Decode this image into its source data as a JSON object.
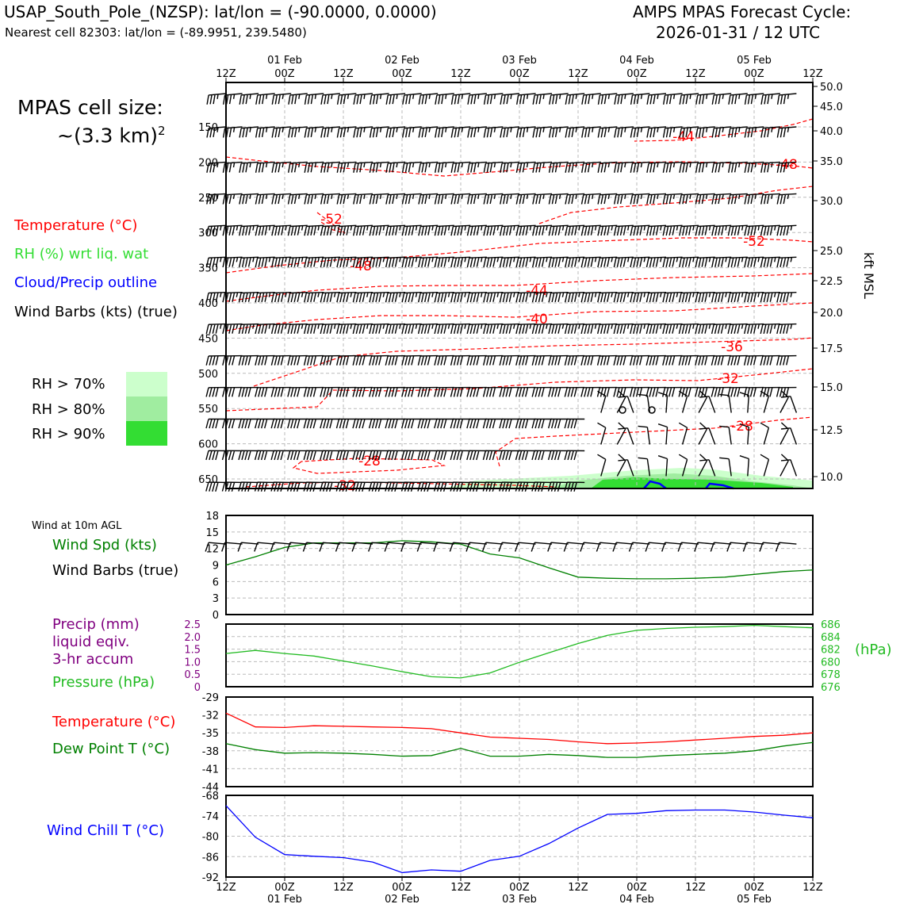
{
  "header": {
    "station_line": "USAP_South_Pole_(NZSP): lat/lon = (-90.0000, 0.0000)",
    "cell_line": "Nearest cell 82303: lat/lon = (-89.9951, 239.5480)",
    "cycle_line1": "AMPS MPAS Forecast Cycle:",
    "cycle_line2": "2026-01-31 / 12 UTC"
  },
  "cell_size": {
    "line1": "MPAS cell size:",
    "line2": "~(3.3 km)",
    "exponent": "2"
  },
  "legend": {
    "temperature": "Temperature (°C)",
    "rh": "RH (%) wrt liq. wat",
    "cloud": "Cloud/Precip outline",
    "barbs": "Wind Barbs (kts) (true)",
    "rh70": "RH > 70%",
    "rh80": "RH > 80%",
    "rh90": "RH > 90%"
  },
  "colors": {
    "temp": "#ff0000",
    "rh": "#33dd33",
    "cloud": "#0000ff",
    "pressure": "#22bb22",
    "dewpoint": "#008000",
    "precip": "#800080",
    "windchill": "#0000ff",
    "rh70": "#ccffcc",
    "rh80": "#a0eda0",
    "rh90": "#33dd33"
  },
  "time_axis": {
    "ticks": [
      "12Z",
      "00Z",
      "12Z",
      "00Z",
      "12Z",
      "00Z",
      "12Z",
      "00Z",
      "12Z",
      "00Z",
      "12Z"
    ],
    "dates": [
      "01 Feb",
      "02 Feb",
      "03 Feb",
      "04 Feb",
      "05 Feb"
    ],
    "hours": [
      0,
      12,
      24,
      36,
      48,
      60,
      72,
      84,
      96,
      108,
      120
    ]
  },
  "chart_data": [
    {
      "type": "line",
      "panel": "upper-air cross-section",
      "ylabel_right": "kft MSL",
      "pressure_ticks": [
        "150",
        "200",
        "250",
        "300",
        "350",
        "400",
        "450",
        "500",
        "550",
        "600",
        "650"
      ],
      "pressure_values": [
        150,
        200,
        250,
        300,
        350,
        400,
        450,
        500,
        550,
        600,
        650
      ],
      "kft_ticks": [
        "50.0",
        "45.0",
        "40.0",
        "35.0",
        "30.0",
        "25.0",
        "22.5",
        "20.0",
        "17.5",
        "15.0",
        "12.5",
        "10.0"
      ],
      "temperature_contour_labels": [
        "-44",
        "-48",
        "-52",
        "-52",
        "-48",
        "-44",
        "-40",
        "-36",
        "-32",
        "-28",
        "-28",
        "-32"
      ],
      "barb_levels_hpa": [
        110,
        150,
        200,
        245,
        290,
        335,
        385,
        430,
        475,
        520,
        565,
        610,
        655
      ],
      "grid": true
    },
    {
      "type": "line",
      "panel": "wind at 10m AGL",
      "title": "Wind at 10m AGL",
      "label_speed": "Wind Spd (kts)",
      "label_barbs": "Wind Barbs (true)",
      "yticks": [
        "0",
        "3",
        "6",
        "9",
        "12",
        "15",
        "18"
      ],
      "ylim": [
        0,
        18
      ],
      "series": [
        {
          "name": "Wind Spd (kts)",
          "x": [
            0,
            6,
            12,
            18,
            24,
            30,
            36,
            42,
            48,
            54,
            60,
            66,
            72,
            78,
            84,
            90,
            96,
            102,
            108,
            114,
            120
          ],
          "values": [
            9,
            10.5,
            12.2,
            13,
            13,
            13,
            13.4,
            13.2,
            12.8,
            11,
            10.3,
            8.5,
            6.8,
            6.6,
            6.5,
            6.5,
            6.6,
            6.8,
            7.3,
            7.8,
            8.1
          ]
        }
      ],
      "grid": true
    },
    {
      "type": "line",
      "panel": "precip and pressure",
      "label_precip": "Precip (mm)",
      "label_precip2": "liquid eqiv.",
      "label_precip3": "3-hr accum",
      "label_pressure": "Pressure (hPa)",
      "ylabel_right": "(hPa)",
      "left_ticks": [
        "0",
        "0.5",
        "1.0",
        "1.5",
        "2.0",
        "2.5"
      ],
      "right_ticks": [
        "676",
        "678",
        "680",
        "682",
        "684",
        "686"
      ],
      "ylim_right": [
        676,
        686
      ],
      "series": [
        {
          "name": "Pressure (hPa)",
          "x": [
            0,
            6,
            12,
            18,
            24,
            30,
            36,
            42,
            48,
            54,
            60,
            66,
            72,
            78,
            84,
            90,
            96,
            102,
            108,
            114,
            120
          ],
          "values": [
            681.3,
            681.8,
            681.3,
            680.9,
            680.1,
            679.3,
            678.4,
            677.6,
            677.4,
            678.2,
            679.9,
            681.4,
            682.9,
            684.2,
            685,
            685.3,
            685.5,
            685.6,
            685.8,
            685.6,
            685.4
          ]
        }
      ],
      "grid": true
    },
    {
      "type": "line",
      "panel": "temperature and dew point",
      "label_temp": "Temperature (°C)",
      "label_dew": "Dew Point T (°C)",
      "yticks": [
        "-44",
        "-41",
        "-38",
        "-35",
        "-32",
        "-29"
      ],
      "ylim": [
        -44,
        -29
      ],
      "series": [
        {
          "name": "Temperature (°C)",
          "x": [
            0,
            6,
            12,
            18,
            24,
            30,
            36,
            42,
            48,
            54,
            60,
            66,
            72,
            78,
            84,
            90,
            96,
            102,
            108,
            114,
            120
          ],
          "values": [
            -31.7,
            -34,
            -34.1,
            -33.8,
            -33.9,
            -34,
            -34.1,
            -34.3,
            -35,
            -35.7,
            -35.9,
            -36.1,
            -36.5,
            -36.8,
            -36.7,
            -36.5,
            -36.2,
            -35.9,
            -35.6,
            -35.4,
            -35
          ]
        },
        {
          "name": "Dew Point T (°C)",
          "x": [
            0,
            6,
            12,
            18,
            24,
            30,
            36,
            42,
            48,
            54,
            60,
            66,
            72,
            78,
            84,
            90,
            96,
            102,
            108,
            114,
            120
          ],
          "values": [
            -36.8,
            -37.8,
            -38.4,
            -38.3,
            -38.4,
            -38.6,
            -38.9,
            -38.8,
            -37.6,
            -38.9,
            -38.9,
            -38.6,
            -38.8,
            -39.1,
            -39.1,
            -38.8,
            -38.6,
            -38.4,
            -38,
            -37.2,
            -36.6
          ]
        }
      ],
      "grid": true
    },
    {
      "type": "line",
      "panel": "wind chill",
      "label": "Wind Chill T (°C)",
      "yticks": [
        "-92",
        "-86",
        "-80",
        "-74",
        "-68"
      ],
      "ylim": [
        -92,
        -68
      ],
      "series": [
        {
          "name": "Wind Chill T (°C)",
          "x": [
            0,
            6,
            12,
            18,
            24,
            30,
            36,
            42,
            48,
            54,
            60,
            66,
            72,
            78,
            84,
            90,
            96,
            102,
            108,
            114,
            120
          ],
          "values": [
            -71,
            -80.3,
            -85.4,
            -85.9,
            -86.3,
            -87.6,
            -90.7,
            -89.9,
            -90.3,
            -87.1,
            -85.9,
            -82.2,
            -77.6,
            -73.6,
            -73.3,
            -72.5,
            -72.3,
            -72.3,
            -72.9,
            -73.8,
            -74.6
          ]
        }
      ],
      "grid": true
    }
  ]
}
